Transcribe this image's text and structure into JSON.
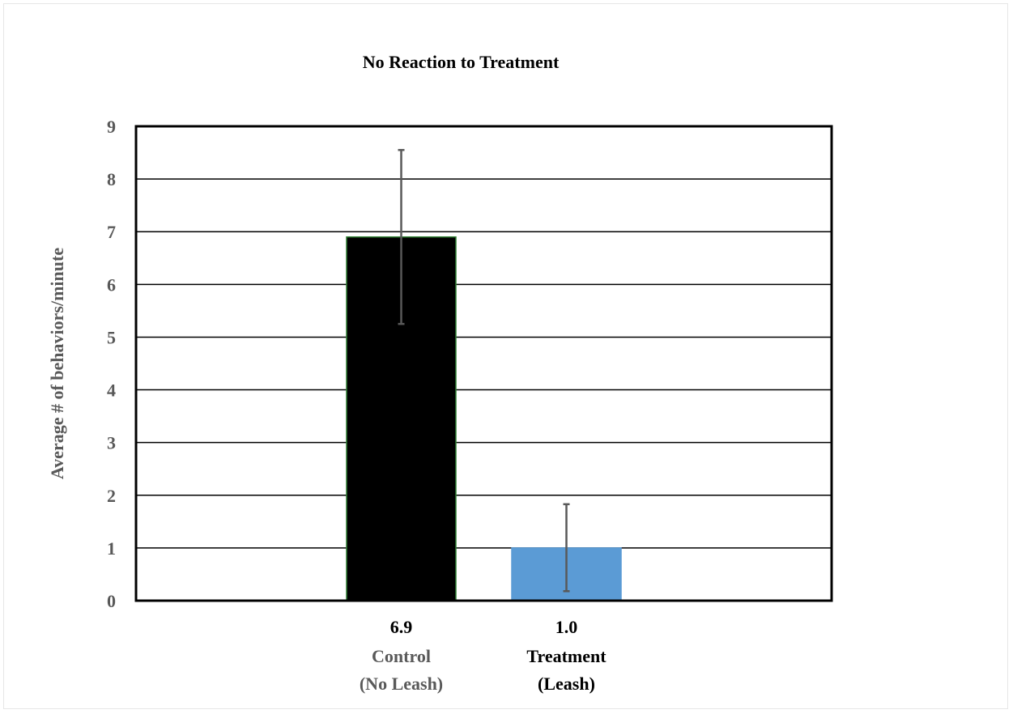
{
  "chart_data": {
    "type": "bar",
    "title": "No Reaction to Treatment",
    "xlabel": "",
    "ylabel": "Average  # of behaviors/minute",
    "ylim": [
      0,
      9
    ],
    "y_ticks": [
      "0",
      "1",
      "2",
      "3",
      "4",
      "5",
      "6",
      "7",
      "8",
      "9"
    ],
    "grid": true,
    "categories": [
      {
        "value_label": "6.9",
        "line1": "Control",
        "line2": "(No Leash)"
      },
      {
        "value_label": "1.0",
        "line1": "Treatment",
        "line2": "(Leash)"
      }
    ],
    "values": [
      6.9,
      1.0
    ],
    "error_bars": [
      {
        "low": 5.25,
        "high": 8.55
      },
      {
        "low": 0.18,
        "high": 1.83
      }
    ],
    "colors": {
      "bars": [
        "#000000",
        "#5b9bd5"
      ],
      "bar_outline": [
        "#2e7d32",
        "#5b9bd5"
      ],
      "error_bar": "#595959",
      "axis_text": "#595959",
      "title_text": "#000000",
      "grid": "#000000"
    },
    "category_label_colors": [
      "#595959",
      "#000000"
    ]
  }
}
